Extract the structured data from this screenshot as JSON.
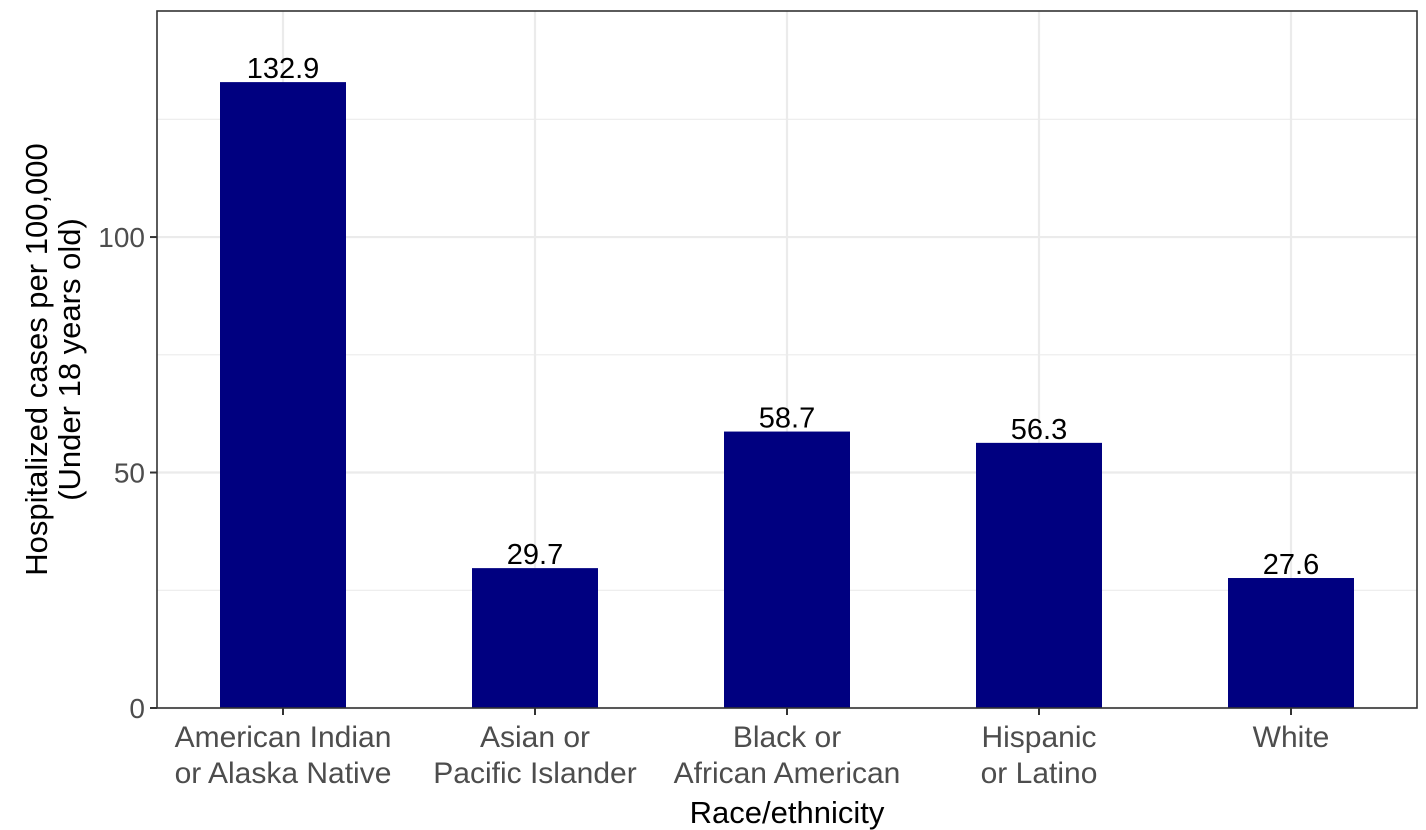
{
  "chart_data": {
    "type": "bar",
    "categories": [
      [
        "American Indian",
        "or Alaska Native"
      ],
      [
        "Asian or",
        "Pacific Islander"
      ],
      [
        "Black or",
        "African American"
      ],
      [
        "Hispanic",
        "or Latino"
      ],
      [
        "White"
      ]
    ],
    "values": [
      132.9,
      29.7,
      58.7,
      56.3,
      27.6
    ],
    "data_labels": [
      "132.9",
      "29.7",
      "58.7",
      "56.3",
      "27.6"
    ],
    "xlabel": "Race/ethnicity",
    "ylabel": [
      "Hospitalized cases per 100,000",
      "(Under 18 years old)"
    ],
    "ylim": [
      0,
      148
    ],
    "y_ticks": [
      0,
      50,
      100
    ],
    "y_minor_ticks": [
      25,
      75,
      125
    ],
    "grid": true,
    "legend": "none",
    "bar_color": "#000080",
    "grid_color": "#ebebeb",
    "panel_border_color": "#333333"
  }
}
